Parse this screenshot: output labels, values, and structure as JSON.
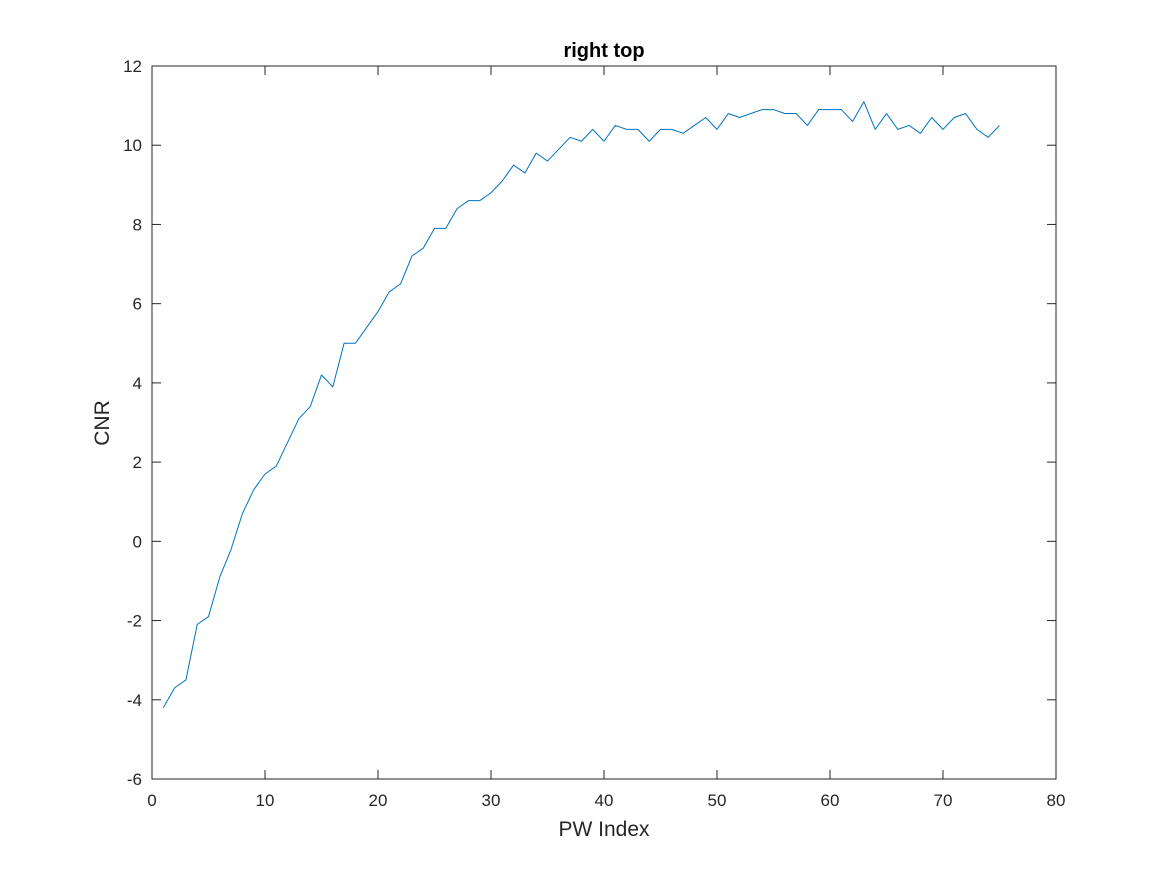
{
  "chart_data": {
    "type": "line",
    "title": "right top",
    "xlabel": "PW Index",
    "ylabel": "CNR",
    "xlim": [
      0,
      80
    ],
    "ylim": [
      -6,
      12
    ],
    "xticks": [
      0,
      10,
      20,
      30,
      40,
      50,
      60,
      70,
      80
    ],
    "yticks": [
      -6,
      -4,
      -2,
      0,
      2,
      4,
      6,
      8,
      10,
      12
    ],
    "grid": false,
    "legend": "none",
    "line_color": "#0072BD",
    "series": [
      {
        "x": [
          1,
          2,
          3,
          4,
          5,
          6,
          7,
          8,
          9,
          10,
          11,
          12,
          13,
          14,
          15,
          16,
          17,
          18,
          19,
          20,
          21,
          22,
          23,
          24,
          25,
          26,
          27,
          28,
          29,
          30,
          31,
          32,
          33,
          34,
          35,
          36,
          37,
          38,
          39,
          40,
          41,
          42,
          43,
          44,
          45,
          46,
          47,
          48,
          49,
          50,
          51,
          52,
          53,
          54,
          55,
          56,
          57,
          58,
          59,
          60,
          61,
          62,
          63,
          64,
          65,
          66,
          67,
          68,
          69,
          70,
          71,
          72,
          73,
          74,
          75
        ],
        "values": [
          -4.2,
          -3.7,
          -3.5,
          -2.1,
          -1.9,
          -0.9,
          -0.2,
          0.7,
          1.3,
          1.7,
          1.9,
          2.5,
          3.1,
          3.4,
          4.2,
          3.9,
          5.0,
          5.0,
          5.4,
          5.8,
          6.3,
          6.5,
          7.2,
          7.4,
          7.9,
          7.9,
          8.4,
          8.6,
          8.6,
          8.8,
          9.1,
          9.5,
          9.3,
          9.8,
          9.6,
          9.9,
          10.2,
          10.1,
          10.4,
          10.1,
          10.5,
          10.4,
          10.4,
          10.1,
          10.4,
          10.4,
          10.3,
          10.5,
          10.7,
          10.4,
          10.8,
          10.7,
          10.8,
          10.9,
          10.9,
          10.8,
          10.8,
          10.5,
          10.9,
          10.9,
          10.9,
          10.6,
          11.1,
          10.4,
          10.8,
          10.4,
          10.5,
          10.3,
          10.7,
          10.4,
          10.7,
          10.8,
          10.4,
          10.2,
          10.5
        ]
      }
    ]
  }
}
